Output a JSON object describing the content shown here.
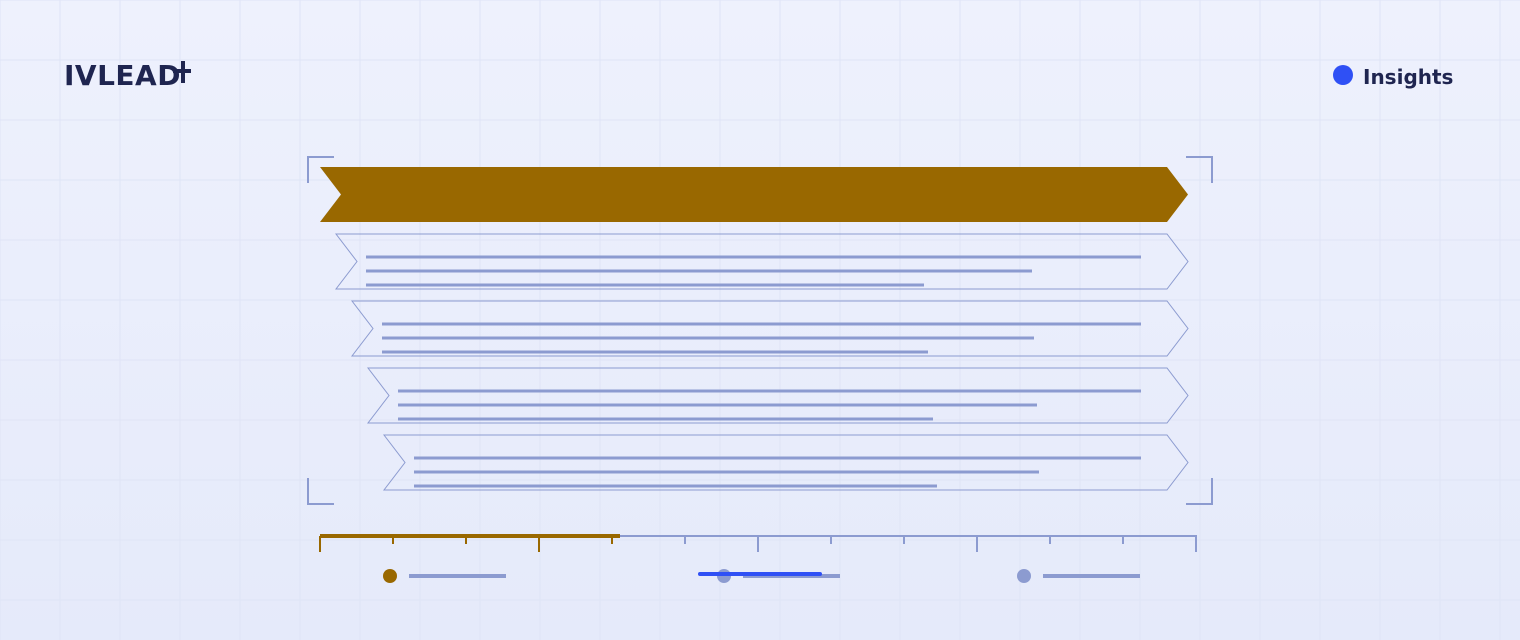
{
  "header": {
    "logo": "IVLEAD",
    "nav_label": "Insights"
  }
}
